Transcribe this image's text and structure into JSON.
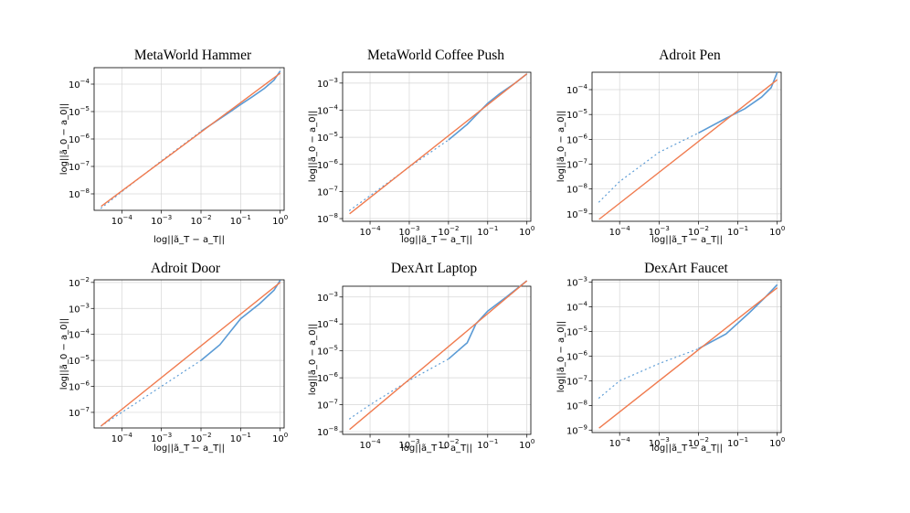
{
  "figure": {
    "background": "#ffffff"
  },
  "colors": {
    "measured": "#5b9bd5",
    "fit": "#f07b4f"
  },
  "chart_data": [
    {
      "type": "line",
      "title": "MetaWorld Hammer",
      "xlabel": "log||ã_T − a_T||",
      "ylabel": "log||ã_0 − a_0||",
      "xscale": "log",
      "yscale": "log",
      "grid": true,
      "xlim_exp": [
        -4.7,
        0.1
      ],
      "ylim_exp": [
        -8.6,
        -3.4
      ],
      "xtick_exps": [
        -4,
        -3,
        -2,
        -1,
        0
      ],
      "ytick_exps": [
        -8,
        -7,
        -6,
        -5,
        -4
      ],
      "series": [
        {
          "role": "measured",
          "color": "#5b9bd5",
          "style": "dotted-to-solid",
          "x": [
            3e-05,
            0.0001,
            0.001,
            0.01,
            0.05,
            0.1,
            0.2,
            0.4,
            0.7,
            1.0
          ],
          "y": [
            3e-09,
            1.2e-08,
            1.6e-07,
            1.9e-06,
            9e-06,
            1.8e-05,
            3.5e-05,
            7e-05,
            0.00014,
            0.0003
          ]
        },
        {
          "role": "fit",
          "color": "#f07b4f",
          "style": "solid",
          "x": [
            3e-05,
            1.0
          ],
          "y": [
            3.5e-09,
            0.00025
          ]
        }
      ]
    },
    {
      "type": "line",
      "title": "MetaWorld Coffee Push",
      "xlabel": "log||ã_T − a_T||",
      "ylabel": "log||ã_0 − a_0||",
      "xscale": "log",
      "yscale": "log",
      "grid": true,
      "xlim_exp": [
        -4.7,
        0.1
      ],
      "ylim_exp": [
        -8.1,
        -2.6
      ],
      "xtick_exps": [
        -4,
        -3,
        -2,
        -1,
        0
      ],
      "ytick_exps": [
        -8,
        -7,
        -6,
        -5,
        -4,
        -3
      ],
      "series": [
        {
          "role": "measured",
          "color": "#5b9bd5",
          "style": "dotted-to-solid",
          "x": [
            3e-05,
            0.0001,
            0.001,
            0.01,
            0.03,
            0.1,
            0.2,
            0.5,
            1.0
          ],
          "y": [
            2e-08,
            7e-08,
            8e-07,
            8e-06,
            3e-05,
            0.00018,
            0.0004,
            0.001,
            0.0022
          ]
        },
        {
          "role": "fit",
          "color": "#f07b4f",
          "style": "solid",
          "x": [
            3e-05,
            1.0
          ],
          "y": [
            1.5e-08,
            0.0022
          ]
        }
      ]
    },
    {
      "type": "line",
      "title": "Adroit Pen",
      "xlabel": "log||ã_T − a_T||",
      "ylabel": "log||ã_0 − a_0||",
      "xscale": "log",
      "yscale": "log",
      "grid": true,
      "xlim_exp": [
        -4.7,
        0.1
      ],
      "ylim_exp": [
        -9.3,
        -3.3
      ],
      "xtick_exps": [
        -4,
        -3,
        -2,
        -1,
        0
      ],
      "ytick_exps": [
        -9,
        -8,
        -7,
        -6,
        -5,
        -4
      ],
      "series": [
        {
          "role": "measured",
          "color": "#5b9bd5",
          "style": "dotted-to-solid",
          "x": [
            3e-05,
            0.0001,
            0.001,
            0.01,
            0.05,
            0.15,
            0.4,
            0.7,
            1.0
          ],
          "y": [
            3e-09,
            2e-08,
            3e-07,
            1.8e-06,
            7e-06,
            1.7e-05,
            5e-05,
            0.00012,
            0.0005
          ]
        },
        {
          "role": "fit",
          "color": "#f07b4f",
          "style": "solid",
          "x": [
            3e-05,
            1.0
          ],
          "y": [
            6e-10,
            0.00025
          ]
        }
      ]
    },
    {
      "type": "line",
      "title": "Adroit Door",
      "xlabel": "log||ã_T − a_T||",
      "ylabel": "log||ã_0 − a_0||",
      "xscale": "log",
      "yscale": "log",
      "grid": true,
      "xlim_exp": [
        -4.7,
        0.1
      ],
      "ylim_exp": [
        -7.6,
        -1.9
      ],
      "xtick_exps": [
        -4,
        -3,
        -2,
        -1,
        0
      ],
      "ytick_exps": [
        -7,
        -6,
        -5,
        -4,
        -3,
        -2
      ],
      "series": [
        {
          "role": "measured",
          "color": "#5b9bd5",
          "style": "dotted-to-solid",
          "x": [
            3e-05,
            0.0001,
            0.001,
            0.01,
            0.03,
            0.1,
            0.3,
            0.7,
            1.0
          ],
          "y": [
            3e-08,
            1e-07,
            1e-06,
            1e-05,
            4e-05,
            0.0004,
            0.0015,
            0.005,
            0.012
          ]
        },
        {
          "role": "fit",
          "color": "#f07b4f",
          "style": "solid",
          "x": [
            3e-05,
            1.0
          ],
          "y": [
            3e-08,
            0.01
          ]
        }
      ]
    },
    {
      "type": "line",
      "title": "DexArt Laptop",
      "xlabel": "log||ã_T − a_T||",
      "ylabel": "log||ã_0 − a_0||",
      "xscale": "log",
      "yscale": "log",
      "grid": true,
      "xlim_exp": [
        -4.7,
        0.1
      ],
      "ylim_exp": [
        -8.1,
        -2.6
      ],
      "xtick_exps": [
        -4,
        -3,
        -2,
        -1,
        0
      ],
      "ytick_exps": [
        -8,
        -7,
        -6,
        -5,
        -4,
        -3
      ],
      "series": [
        {
          "role": "measured",
          "color": "#5b9bd5",
          "style": "dotted-to-solid",
          "x": [
            3e-05,
            0.0001,
            0.001,
            0.01,
            0.03,
            0.05,
            0.1,
            0.3,
            1.0
          ],
          "y": [
            3e-08,
            1e-07,
            8e-07,
            5e-06,
            2e-05,
            0.0001,
            0.0003,
            0.001,
            0.004
          ]
        },
        {
          "role": "fit",
          "color": "#f07b4f",
          "style": "solid",
          "x": [
            3e-05,
            1.0
          ],
          "y": [
            1.2e-08,
            0.004
          ]
        }
      ]
    },
    {
      "type": "line",
      "title": "DexArt Faucet",
      "xlabel": "log||ã_T − a_T||",
      "ylabel": "log||ã_0 − a_0||",
      "xscale": "log",
      "yscale": "log",
      "grid": true,
      "xlim_exp": [
        -4.7,
        0.1
      ],
      "ylim_exp": [
        -9.1,
        -2.9
      ],
      "xtick_exps": [
        -4,
        -3,
        -2,
        -1,
        0
      ],
      "ytick_exps": [
        -9,
        -8,
        -7,
        -6,
        -5,
        -4,
        -3
      ],
      "series": [
        {
          "role": "measured",
          "color": "#5b9bd5",
          "style": "dotted-to-solid",
          "x": [
            3e-05,
            0.0001,
            0.001,
            0.01,
            0.05,
            0.2,
            0.5,
            1.0
          ],
          "y": [
            2e-08,
            1e-07,
            5e-07,
            2e-06,
            8e-06,
            6e-05,
            0.00025,
            0.0008
          ]
        },
        {
          "role": "fit",
          "color": "#f07b4f",
          "style": "solid",
          "x": [
            3e-05,
            1.0
          ],
          "y": [
            1.2e-09,
            0.0006
          ]
        }
      ]
    }
  ]
}
